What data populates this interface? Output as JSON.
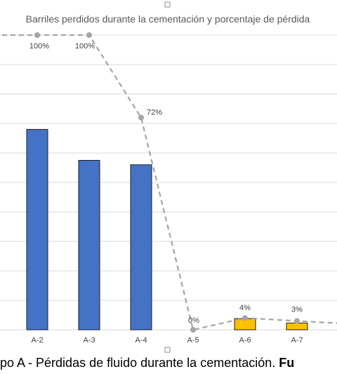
{
  "chart_data": {
    "type": "bar",
    "title": "Barriles perdidos durante la cementación y porcentaje de pérdida",
    "categories": [
      "A-2",
      "A-3",
      "A-4",
      "A-5",
      "A-6",
      "A-7"
    ],
    "bar_colors": [
      "#4472c4",
      "#4472c4",
      "#4472c4",
      "#4472c4",
      "#ffc000",
      "#ffc000"
    ],
    "bar_values": [
      68,
      57.5,
      56,
      0,
      3.8,
      2.3
    ],
    "line_series": {
      "values": [
        100,
        100,
        72,
        0,
        4,
        3
      ],
      "labels": [
        "100%",
        "100%",
        "72%",
        "0%",
        "4%",
        "3%"
      ],
      "color": "#a5a5a5"
    },
    "grid": true
  },
  "caption": {
    "prefix": "po A - Pérdidas de fluido durante la cementación. ",
    "bold_suffix": "Fu"
  }
}
